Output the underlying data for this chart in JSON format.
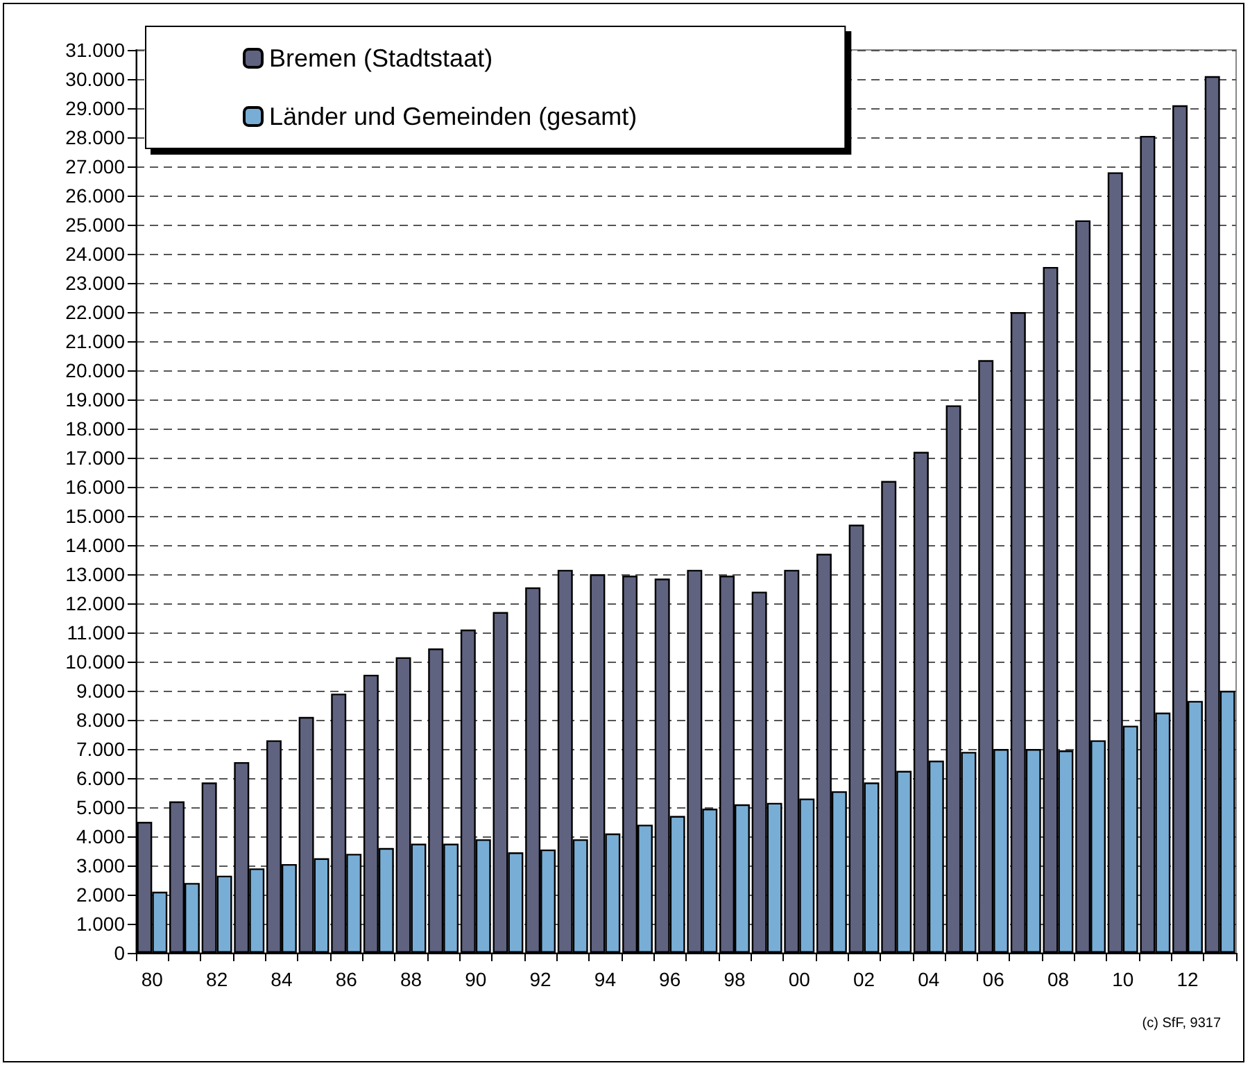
{
  "chart_data": {
    "type": "bar",
    "categories": [
      "80",
      null,
      "82",
      null,
      "84",
      null,
      "86",
      null,
      "88",
      null,
      "90",
      null,
      "92",
      null,
      "94",
      null,
      "96",
      null,
      "98",
      null,
      "00",
      null,
      "02",
      null,
      "04",
      null,
      "06",
      null,
      "08",
      null,
      "10",
      null,
      "12",
      null
    ],
    "series": [
      {
        "name": "Bremen (Stadtstaat)",
        "color": "#5f6380",
        "values": [
          4500,
          5200,
          5850,
          6550,
          7300,
          8100,
          8900,
          9550,
          10150,
          10450,
          11100,
          11700,
          12550,
          13150,
          13000,
          12950,
          12850,
          13150,
          12950,
          12400,
          13150,
          13700,
          14700,
          16200,
          17200,
          18800,
          20350,
          22000,
          23550,
          25150,
          26800,
          28050,
          29100,
          30100
        ]
      },
      {
        "name": "Länder und Gemeinden (gesamt)",
        "color": "#78aed6",
        "values": [
          2100,
          2400,
          2650,
          2900,
          3050,
          3250,
          3400,
          3600,
          3750,
          3750,
          3900,
          3450,
          3550,
          3900,
          4100,
          4400,
          4700,
          4950,
          5100,
          5150,
          5300,
          5550,
          5850,
          6250,
          6600,
          6900,
          7000,
          7000,
          6950,
          7300,
          7800,
          8250,
          8650,
          9000
        ]
      }
    ],
    "ylim": [
      0,
      31000
    ],
    "yticks": [
      {
        "value": 0,
        "label": "0"
      },
      {
        "value": 1000,
        "label": "1.000"
      },
      {
        "value": 2000,
        "label": "2.000"
      },
      {
        "value": 3000,
        "label": "3.000"
      },
      {
        "value": 4000,
        "label": "4.000"
      },
      {
        "value": 5000,
        "label": "5.000"
      },
      {
        "value": 6000,
        "label": "6.000"
      },
      {
        "value": 7000,
        "label": "7.000"
      },
      {
        "value": 8000,
        "label": "8.000"
      },
      {
        "value": 9000,
        "label": "9.000"
      },
      {
        "value": 10000,
        "label": "10.000"
      },
      {
        "value": 11000,
        "label": "11.000"
      },
      {
        "value": 12000,
        "label": "12.000"
      },
      {
        "value": 13000,
        "label": "13.000"
      },
      {
        "value": 14000,
        "label": "14.000"
      },
      {
        "value": 15000,
        "label": "15.000"
      },
      {
        "value": 16000,
        "label": "16.000"
      },
      {
        "value": 17000,
        "label": "17.000"
      },
      {
        "value": 18000,
        "label": "18.000"
      },
      {
        "value": 19000,
        "label": "19.000"
      },
      {
        "value": 20000,
        "label": "20.000"
      },
      {
        "value": 21000,
        "label": "21.000"
      },
      {
        "value": 22000,
        "label": "22.000"
      },
      {
        "value": 23000,
        "label": "23.000"
      },
      {
        "value": 24000,
        "label": "24.000"
      },
      {
        "value": 25000,
        "label": "25.000"
      },
      {
        "value": 26000,
        "label": "26.000"
      },
      {
        "value": 27000,
        "label": "27.000"
      },
      {
        "value": 28000,
        "label": "28.000"
      },
      {
        "value": 29000,
        "label": "29.000"
      },
      {
        "value": 30000,
        "label": "30.000"
      },
      {
        "value": 31000,
        "label": "31.000"
      }
    ],
    "grid": "y",
    "legend": "top left",
    "annotations": [
      "(c) SfF, 9317"
    ]
  }
}
